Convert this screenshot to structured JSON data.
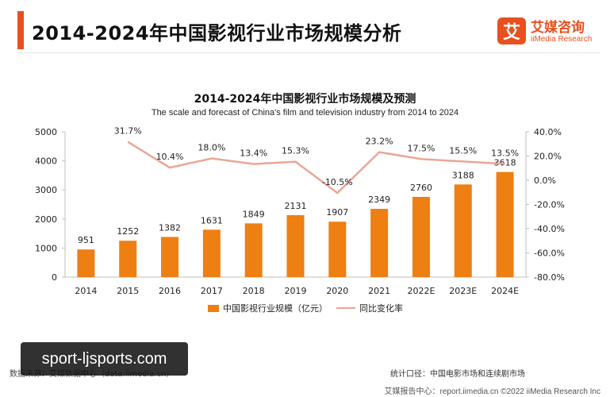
{
  "header": {
    "title": "2014-2024年中国影视行业市场规模分析",
    "logo_mark": "艾",
    "logo_cn": "艾媒咨询",
    "logo_en": "iiMedia Research"
  },
  "chart_data": {
    "type": "bar",
    "title": "2014-2024年中国影视行业市场规模及预测",
    "subtitle": "The scale and forecast of China's film and television industry from 2014 to 2024",
    "categories": [
      "2014",
      "2015",
      "2016",
      "2017",
      "2018",
      "2019",
      "2020",
      "2021",
      "2022E",
      "2023E",
      "2024E"
    ],
    "series": [
      {
        "name": "中国影视行业规模（亿元）",
        "type": "bar",
        "axis": "left",
        "color": "#ee7f12",
        "values": [
          951,
          1252,
          1382,
          1631,
          1849,
          2131,
          1907,
          2349,
          2760,
          3188,
          3618
        ],
        "labels": [
          "951",
          "1252",
          "1382",
          "1631",
          "1849",
          "2131",
          "1907",
          "2349",
          "2760",
          "3188",
          "3618"
        ]
      },
      {
        "name": "同比变化率",
        "type": "line",
        "axis": "right",
        "color": "#eba595",
        "values": [
          null,
          31.7,
          10.4,
          18.0,
          13.4,
          15.3,
          -10.5,
          23.2,
          17.5,
          15.5,
          13.5
        ],
        "labels": [
          "",
          "31.7%",
          "10.4%",
          "18.0%",
          "13.4%",
          "15.3%",
          "-10.5%",
          "23.2%",
          "17.5%",
          "15.5%",
          "13.5%"
        ]
      }
    ],
    "y_left": {
      "min": 0,
      "max": 5000,
      "ticks": [
        0,
        1000,
        2000,
        3000,
        4000,
        5000
      ],
      "tick_labels": [
        "0",
        "1000",
        "2000",
        "3000",
        "4000",
        "5000"
      ]
    },
    "y_right": {
      "min": -80,
      "max": 40,
      "ticks": [
        -80,
        -60,
        -40,
        -20,
        0,
        20,
        40
      ],
      "tick_labels": [
        "-80.0%",
        "-60.0%",
        "-40.0%",
        "-20.0%",
        "0.0%",
        "20.0%",
        "40.0%"
      ]
    },
    "grid": false,
    "legend_position": "bottom"
  },
  "source": {
    "left": "数据来源：艾媒数据中心（data.iimedia.cn）",
    "right": "统计口径：中国电影市场和连续剧市场"
  },
  "footer": "艾媒报告中心：report.iimedia.cn  ©2022  iiMedia Research  Inc",
  "watermark": "sport-ljsports.com"
}
